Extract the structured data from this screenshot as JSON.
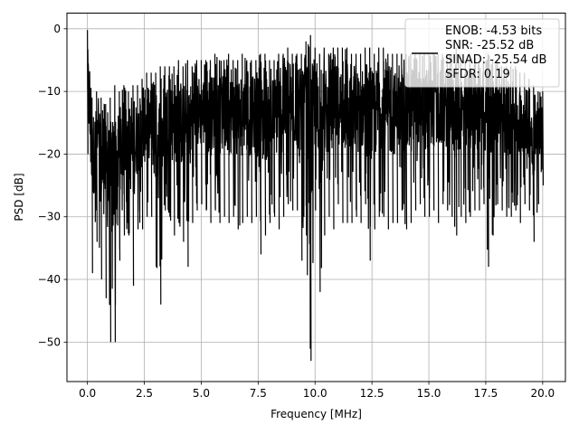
{
  "chart_data": {
    "type": "line",
    "title": "",
    "xlabel": "Frequency [MHz]",
    "ylabel": "PSD [dB]",
    "xlim": [
      -0.9,
      21.0
    ],
    "ylim": [
      -56.3,
      2.5
    ],
    "xticks": [
      0.0,
      2.5,
      5.0,
      7.5,
      10.0,
      12.5,
      15.0,
      17.5,
      20.0
    ],
    "xtick_labels": [
      "0.0",
      "2.5",
      "5.0",
      "7.5",
      "10.0",
      "12.5",
      "15.0",
      "17.5",
      "20.0"
    ],
    "yticks": [
      0,
      -10,
      -20,
      -30,
      -40,
      -50
    ],
    "ytick_labels": [
      "0",
      "−10",
      "−20",
      "−30",
      "−40",
      "−50"
    ],
    "grid": true,
    "legend_position": "top-right",
    "legend_lines": [
      "ENOB: -4.53 bits",
      "SNR: -25.52 dB",
      "SINAD: -25.54 dB",
      "SFDR: 0.19"
    ],
    "line_color": "#000000",
    "series": [
      {
        "x": [
          0.0,
          0.2,
          0.4,
          0.6,
          0.8,
          1.0,
          1.2,
          1.4,
          1.6,
          1.8,
          2.0,
          2.2,
          2.4,
          2.6,
          2.8,
          3.0,
          3.2,
          3.4,
          3.6,
          3.8,
          4.0,
          4.2,
          4.4,
          4.6,
          4.8,
          5.0,
          5.2,
          5.4,
          5.6,
          5.8,
          6.0,
          6.2,
          6.4,
          6.6,
          6.8,
          7.0,
          7.2,
          7.4,
          7.6,
          7.8,
          8.0,
          8.2,
          8.4,
          8.6,
          8.8,
          9.0,
          9.2,
          9.4,
          9.6,
          9.8,
          10.0,
          10.2,
          10.4,
          10.6,
          10.8,
          11.0,
          11.2,
          11.4,
          11.6,
          11.8,
          12.0,
          12.2,
          12.4,
          12.6,
          12.8,
          13.0,
          13.2,
          13.4,
          13.6,
          13.8,
          14.0,
          14.2,
          14.4,
          14.6,
          14.8,
          15.0,
          15.2,
          15.4,
          15.6,
          15.8,
          16.0,
          16.2,
          16.4,
          16.6,
          16.8,
          17.0,
          17.2,
          17.4,
          17.6,
          17.8,
          18.0,
          18.2,
          18.4,
          18.6,
          18.8,
          19.0,
          19.2,
          19.4,
          19.6,
          19.8,
          20.0
        ],
        "upper": [
          -0.2,
          -11,
          -10,
          -11,
          -12,
          -11,
          -9,
          -10,
          -9,
          -10,
          -9,
          -9,
          -8,
          -7,
          -7,
          -7,
          -6,
          -6,
          -6,
          -6,
          -5,
          -6,
          -5,
          -6,
          -5,
          -5,
          -5,
          -5,
          -4,
          -5,
          -5,
          -4,
          -5,
          -5,
          -4,
          -5,
          -5,
          -5,
          -4,
          -4,
          -5,
          -5,
          -4,
          -4,
          -3,
          -4,
          -4,
          -4,
          -2,
          -1,
          -3,
          -4,
          -3,
          -4,
          -3,
          -3,
          -3,
          -3,
          -4,
          -4,
          -4,
          -3,
          -3,
          -4,
          -3,
          -3,
          -4,
          -4,
          -4,
          -4,
          -4,
          -4,
          -4,
          -4,
          -4,
          -4,
          -4,
          -4,
          -4,
          -4,
          -4,
          -3,
          -4,
          -5,
          -4,
          -4,
          -5,
          -5,
          -4,
          -5,
          -5,
          -6,
          -6,
          -6,
          -6,
          -7,
          -7,
          -8,
          -9,
          -10,
          -10
        ],
        "lower": [
          -20,
          -39,
          -34,
          -40,
          -43,
          -50,
          -50,
          -37,
          -33,
          -33,
          -41,
          -32,
          -32,
          -30,
          -30,
          -38,
          -44,
          -29,
          -30,
          -33,
          -31,
          -34,
          -38,
          -31,
          -29,
          -28,
          -29,
          -31,
          -29,
          -31,
          -30,
          -31,
          -30,
          -32,
          -31,
          -30,
          -31,
          -30,
          -36,
          -33,
          -31,
          -30,
          -32,
          -30,
          -28,
          -29,
          -29,
          -37,
          -33,
          -53,
          -29,
          -42,
          -33,
          -30,
          -32,
          -28,
          -31,
          -31,
          -31,
          -30,
          -31,
          -28,
          -37,
          -32,
          -30,
          -30,
          -32,
          -31,
          -31,
          -29,
          -32,
          -31,
          -29,
          -28,
          -30,
          -30,
          -29,
          -31,
          -28,
          -29,
          -30,
          -33,
          -30,
          -31,
          -30,
          -29,
          -29,
          -28,
          -38,
          -33,
          -28,
          -29,
          -30,
          -30,
          -29,
          -31,
          -28,
          -29,
          -34,
          -28,
          -25
        ]
      }
    ]
  }
}
